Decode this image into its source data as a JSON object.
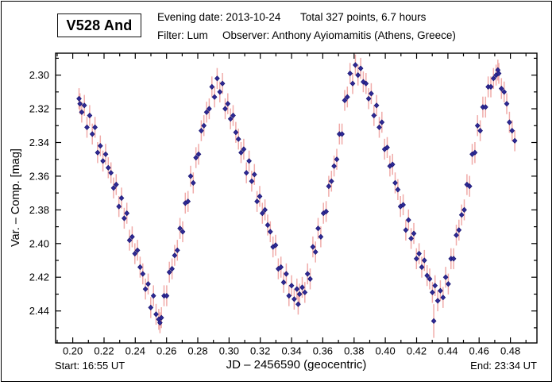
{
  "header": {
    "star_name": "V528 And",
    "evening_date": "Evening date: 2013-10-24",
    "total_points": "Total 327 points, 6.7 hours",
    "filter": "Filter: Lum",
    "observer": "Observer: Anthony Ayiomamitis (Athens, Greece)"
  },
  "footer": {
    "start": "Start: 16:55 UT",
    "end": "End: 23:34 UT"
  },
  "chart_data": {
    "type": "scatter",
    "title": "V528 And",
    "xlabel": "JD – 2456590  (geocentric)",
    "ylabel": "Var. – Comp. [mag]",
    "x_range": [
      0.189,
      0.497
    ],
    "y_range": [
      2.287,
      2.459
    ],
    "y_increases_downward": true,
    "grid": false,
    "legend": "none",
    "x_major_ticks": [
      0.2,
      0.22,
      0.24,
      0.26,
      0.28,
      0.3,
      0.32,
      0.34,
      0.36,
      0.38,
      0.4,
      0.42,
      0.44,
      0.46,
      0.48
    ],
    "x_tick_labels": [
      "0.20",
      "0.22",
      "0.24",
      "0.26",
      "0.28",
      "0.30",
      "0.32",
      "0.34",
      "0.36",
      "0.38",
      "0.40",
      "0.42",
      "0.44",
      "0.46",
      "0.48"
    ],
    "x_minor_ticks": [
      0.19,
      0.21,
      0.23,
      0.25,
      0.27,
      0.29,
      0.31,
      0.33,
      0.35,
      0.37,
      0.39,
      0.41,
      0.43,
      0.45,
      0.47,
      0.49
    ],
    "y_major_ticks": [
      2.3,
      2.32,
      2.34,
      2.36,
      2.38,
      2.4,
      2.42,
      2.44
    ],
    "y_tick_labels": [
      "2.30",
      "2.32",
      "2.34",
      "2.36",
      "2.38",
      "2.40",
      "2.42",
      "2.44"
    ],
    "y_minor_ticks": [
      2.29,
      2.31,
      2.33,
      2.35,
      2.37,
      2.39,
      2.41,
      2.43,
      2.45
    ],
    "marker": {
      "shape": "diamond",
      "color": "#2e2a96",
      "edge": "#1a1570"
    },
    "error_bar_color": "#f0aba9",
    "default_err_mag": 0.0062,
    "points": [
      [
        0.204,
        2.314
      ],
      [
        0.2046,
        2.317
      ],
      [
        0.2057,
        2.322
      ],
      [
        0.2074,
        2.318
      ],
      [
        0.2091,
        2.331
      ],
      [
        0.2108,
        2.324
      ],
      [
        0.2125,
        2.335
      ],
      [
        0.2142,
        2.331
      ],
      [
        0.2159,
        2.346
      ],
      [
        0.2176,
        2.342
      ],
      [
        0.2193,
        2.351
      ],
      [
        0.221,
        2.347
      ],
      [
        0.2227,
        2.355
      ],
      [
        0.2244,
        2.358
      ],
      [
        0.2261,
        2.367
      ],
      [
        0.2278,
        2.365
      ],
      [
        0.2295,
        2.378
      ],
      [
        0.2312,
        2.373
      ],
      [
        0.2329,
        2.385
      ],
      [
        0.2346,
        2.382
      ],
      [
        0.2363,
        2.398
      ],
      [
        0.238,
        2.396
      ],
      [
        0.2397,
        2.406
      ],
      [
        0.2414,
        2.404
      ],
      [
        0.2431,
        2.414
      ],
      [
        0.2448,
        2.418
      ],
      [
        0.2465,
        2.427
      ],
      [
        0.2482,
        2.424
      ],
      [
        0.2499,
        2.438
      ],
      [
        0.2516,
        2.431
      ],
      [
        0.2533,
        2.442
      ],
      [
        0.255,
        2.445
      ],
      [
        0.2558,
        2.447
      ],
      [
        0.2567,
        2.444
      ],
      [
        0.2584,
        2.431
      ],
      [
        0.2601,
        2.431
      ],
      [
        0.2618,
        2.417
      ],
      [
        0.2635,
        2.415
      ],
      [
        0.2652,
        2.407
      ],
      [
        0.2669,
        2.404
      ],
      [
        0.2686,
        2.391
      ],
      [
        0.2703,
        2.393
      ],
      [
        0.272,
        2.376
      ],
      [
        0.2737,
        2.375
      ],
      [
        0.2754,
        2.36
      ],
      [
        0.2771,
        2.364
      ],
      [
        0.2788,
        2.349
      ],
      [
        0.2805,
        2.347
      ],
      [
        0.2822,
        2.333
      ],
      [
        0.2839,
        2.33
      ],
      [
        0.2856,
        2.322
      ],
      [
        0.2873,
        2.32
      ],
      [
        0.289,
        2.307
      ],
      [
        0.2907,
        2.313
      ],
      [
        0.2924,
        2.302
      ],
      [
        0.2941,
        2.31
      ],
      [
        0.2958,
        2.305
      ],
      [
        0.2975,
        2.32
      ],
      [
        0.2992,
        2.317
      ],
      [
        0.3009,
        2.326
      ],
      [
        0.3026,
        2.324
      ],
      [
        0.3043,
        2.334
      ],
      [
        0.306,
        2.338
      ],
      [
        0.3077,
        2.346
      ],
      [
        0.3094,
        2.344
      ],
      [
        0.3111,
        2.358
      ],
      [
        0.3128,
        2.351
      ],
      [
        0.3145,
        2.363
      ],
      [
        0.3162,
        2.359
      ],
      [
        0.3179,
        2.375
      ],
      [
        0.3196,
        2.372
      ],
      [
        0.3213,
        2.382
      ],
      [
        0.323,
        2.38
      ],
      [
        0.3247,
        2.389
      ],
      [
        0.3264,
        2.393
      ],
      [
        0.3281,
        2.402
      ],
      [
        0.3298,
        2.401
      ],
      [
        0.3315,
        2.415
      ],
      [
        0.3332,
        2.414
      ],
      [
        0.3349,
        2.423
      ],
      [
        0.3366,
        2.418
      ],
      [
        0.3383,
        2.431
      ],
      [
        0.34,
        2.425
      ],
      [
        0.3417,
        2.433
      ],
      [
        0.3434,
        2.427
      ],
      [
        0.3442,
        2.436
      ],
      [
        0.3451,
        2.43
      ],
      [
        0.3468,
        2.426
      ],
      [
        0.3485,
        2.429
      ],
      [
        0.3502,
        2.418
      ],
      [
        0.3519,
        2.421
      ],
      [
        0.3536,
        2.402
      ],
      [
        0.3553,
        2.405
      ],
      [
        0.357,
        2.391
      ],
      [
        0.3587,
        2.396
      ],
      [
        0.3604,
        2.382
      ],
      [
        0.3621,
        2.381
      ],
      [
        0.3638,
        2.366
      ],
      [
        0.3655,
        2.363
      ],
      [
        0.3672,
        2.354
      ],
      [
        0.3689,
        2.35
      ],
      [
        0.3706,
        2.335
      ],
      [
        0.3723,
        2.335
      ],
      [
        0.374,
        2.315
      ],
      [
        0.3757,
        2.313
      ],
      [
        0.3774,
        2.299
      ],
      [
        0.3791,
        2.305
      ],
      [
        0.3808,
        2.294
      ],
      [
        0.3825,
        2.3
      ],
      [
        0.3842,
        2.296
      ],
      [
        0.3859,
        2.304
      ],
      [
        0.3876,
        2.305
      ],
      [
        0.3893,
        2.314
      ],
      [
        0.391,
        2.311
      ],
      [
        0.3927,
        2.324
      ],
      [
        0.3944,
        2.318
      ],
      [
        0.3961,
        2.331
      ],
      [
        0.3978,
        2.328
      ],
      [
        0.3995,
        2.344
      ],
      [
        0.4012,
        2.343
      ],
      [
        0.4029,
        2.354
      ],
      [
        0.4046,
        2.353
      ],
      [
        0.4063,
        2.364
      ],
      [
        0.408,
        2.368
      ],
      [
        0.4097,
        2.378
      ],
      [
        0.4114,
        2.377
      ],
      [
        0.4131,
        2.392
      ],
      [
        0.4148,
        2.386
      ],
      [
        0.4165,
        2.397
      ],
      [
        0.4182,
        2.394
      ],
      [
        0.4199,
        2.409
      ],
      [
        0.4216,
        2.406
      ],
      [
        0.4233,
        2.414
      ],
      [
        0.425,
        2.41
      ],
      [
        0.4267,
        2.419
      ],
      [
        0.4284,
        2.421
      ],
      [
        0.4301,
        2.429
      ],
      [
        0.431,
        2.446,
        0.01
      ],
      [
        0.4318,
        2.425
      ],
      [
        0.4335,
        2.434
      ],
      [
        0.4352,
        2.428
      ],
      [
        0.4369,
        2.432
      ],
      [
        0.4386,
        2.42
      ],
      [
        0.4403,
        2.424
      ],
      [
        0.442,
        2.409
      ],
      [
        0.4437,
        2.409
      ],
      [
        0.4454,
        2.395
      ],
      [
        0.4471,
        2.392
      ],
      [
        0.4488,
        2.383
      ],
      [
        0.4505,
        2.38
      ],
      [
        0.4522,
        2.365
      ],
      [
        0.4539,
        2.366
      ],
      [
        0.4556,
        2.347
      ],
      [
        0.4573,
        2.346
      ],
      [
        0.459,
        2.33
      ],
      [
        0.4607,
        2.333
      ],
      [
        0.4624,
        2.319
      ],
      [
        0.4641,
        2.319
      ],
      [
        0.4658,
        2.307
      ],
      [
        0.4675,
        2.307
      ],
      [
        0.4692,
        2.302
      ],
      [
        0.4709,
        2.3
      ],
      [
        0.472,
        2.297
      ],
      [
        0.4726,
        2.299
      ],
      [
        0.4743,
        2.308
      ],
      [
        0.476,
        2.31
      ],
      [
        0.4777,
        2.317
      ],
      [
        0.4794,
        2.328
      ],
      [
        0.4811,
        2.333
      ],
      [
        0.4828,
        2.339
      ]
    ]
  }
}
